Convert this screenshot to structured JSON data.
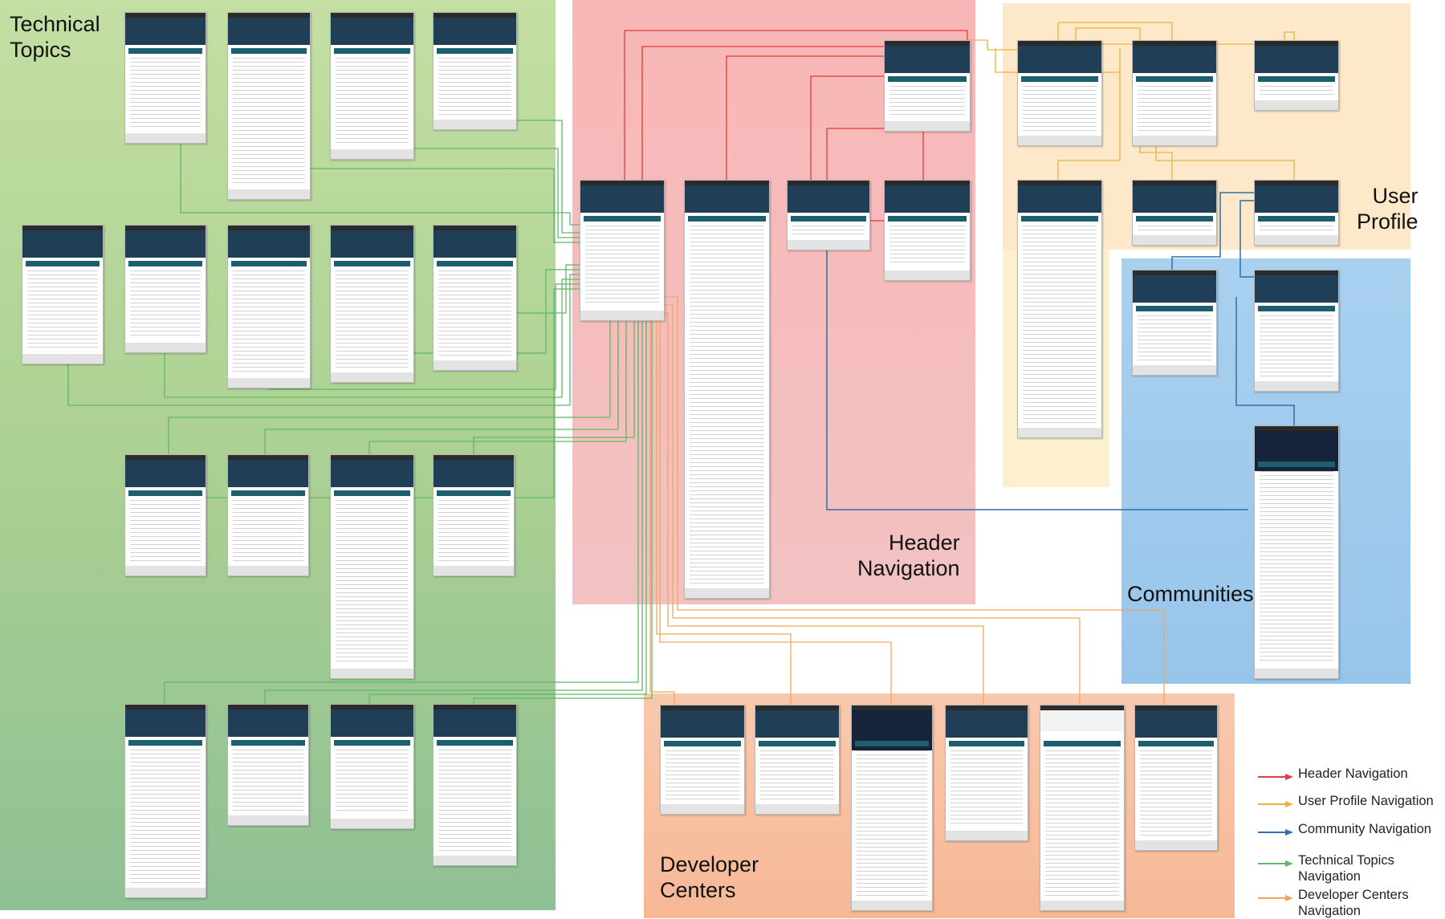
{
  "regions": {
    "technical_topics": "Technical\nTopics",
    "header_navigation": "Header\nNavigation",
    "user_profile": "User\nProfile",
    "communities": "Communities",
    "developer_centers": "Developer\nCenters"
  },
  "legend": [
    {
      "label": "Header Navigation",
      "color": "#e23b3b"
    },
    {
      "label": "User Profile Navigation",
      "color": "#e9b43a"
    },
    {
      "label": "Community Navigation",
      "color": "#2f6fab"
    },
    {
      "label": "Technical Topics\nNavigation",
      "color": "#5fb865"
    },
    {
      "label": "Developer Centers\nNavigation",
      "color": "#f0a65a"
    }
  ],
  "colors": {
    "header": "#e23b3b",
    "profile": "#e9b43a",
    "community": "#2f6fab",
    "topics": "#5fb865",
    "developer": "#f0a65a"
  }
}
